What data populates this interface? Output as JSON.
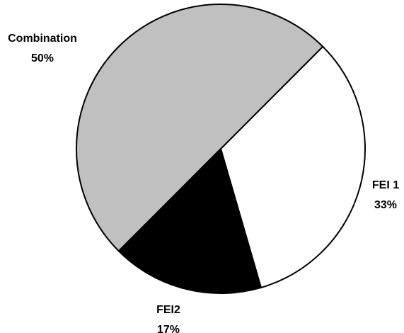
{
  "chart_data": {
    "type": "pie",
    "categories": [
      "FEI 1",
      "FEI2",
      "Combination"
    ],
    "values": [
      33,
      17,
      50
    ],
    "value_labels": [
      "33%",
      "17%",
      "50%"
    ],
    "colors": [
      "#ffffff",
      "#000000",
      "#c0c0c0"
    ]
  }
}
